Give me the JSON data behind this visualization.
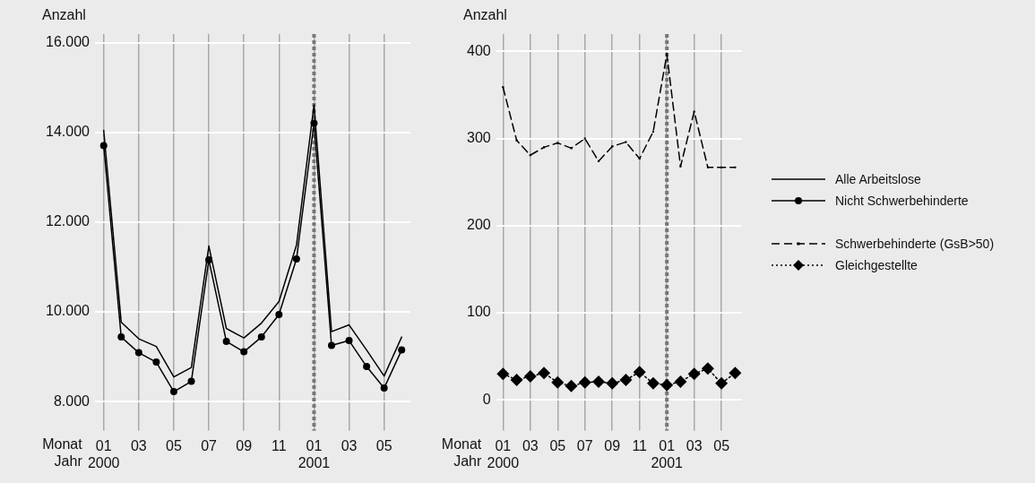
{
  "chart_data": [
    {
      "type": "line",
      "ylabel": "Anzahl",
      "xlabel": "Monat\nJahr",
      "categories": [
        "01\n2000",
        null,
        "03",
        null,
        "05",
        null,
        "07",
        null,
        "09",
        null,
        "11",
        null,
        "01\n2001",
        null,
        "03",
        null,
        "05",
        null
      ],
      "series": [
        {
          "name": "Alle Arbeitslose",
          "color": "#000000",
          "line_style": "solid",
          "marker": "none",
          "values": [
            14050,
            9770,
            9400,
            9230,
            8550,
            8760,
            11470,
            9630,
            9420,
            9750,
            10230,
            11490,
            14620,
            9560,
            9710,
            9150,
            8570,
            9440
          ]
        },
        {
          "name": "Nicht Schwerbehinderte",
          "color": "#000000",
          "line_style": "solid",
          "marker": "circle",
          "values": [
            13710,
            9440,
            9090,
            8880,
            8220,
            8450,
            11160,
            9340,
            9110,
            9440,
            9940,
            11180,
            14210,
            9250,
            9360,
            8780,
            8300,
            9150
          ]
        }
      ],
      "ylim": [
        7550,
        16200
      ],
      "yticks": [
        {
          "value": 8000,
          "label": "8.000"
        },
        {
          "value": 10000,
          "label": "10.000"
        },
        {
          "value": 12000,
          "label": "12.000"
        },
        {
          "value": 14000,
          "label": "14.000"
        },
        {
          "value": 16000,
          "label": "16.000"
        }
      ],
      "grid": true,
      "legend": "right",
      "ref_lines": [
        {
          "axis": "x",
          "value": "01\n2001",
          "color": "#777777",
          "line_style": "dotted"
        }
      ]
    },
    {
      "type": "line",
      "ylabel": "Anzahl",
      "xlabel": "Monat\nJahr",
      "categories": [
        "01\n2000",
        null,
        "03",
        null,
        "05",
        null,
        "07",
        null,
        "09",
        null,
        "11",
        null,
        "01\n2001",
        null,
        "03",
        null,
        "05",
        null
      ],
      "series": [
        {
          "name": "Schwerbehinderte (GsB>50)",
          "color": "#000000",
          "line_style": "dashed",
          "marker": "square",
          "values": [
            359,
            298,
            281,
            290,
            295,
            289,
            300,
            274,
            291,
            296,
            277,
            308,
            397,
            268,
            331,
            267,
            267,
            267
          ]
        },
        {
          "name": "Gleichgestellte",
          "color": "#000000",
          "line_style": "dotted",
          "marker": "diamond",
          "values": [
            30,
            23,
            27,
            31,
            20,
            16,
            20,
            21,
            19,
            23,
            32,
            19,
            17,
            21,
            30,
            36,
            19,
            31
          ]
        }
      ],
      "ylim": [
        -25,
        420
      ],
      "yticks": [
        0,
        100,
        200,
        300,
        400
      ],
      "grid": true,
      "legend": "right",
      "ref_lines": [
        {
          "axis": "x",
          "value": "01\n2001",
          "color": "#777777",
          "line_style": "dotted"
        }
      ]
    }
  ]
}
